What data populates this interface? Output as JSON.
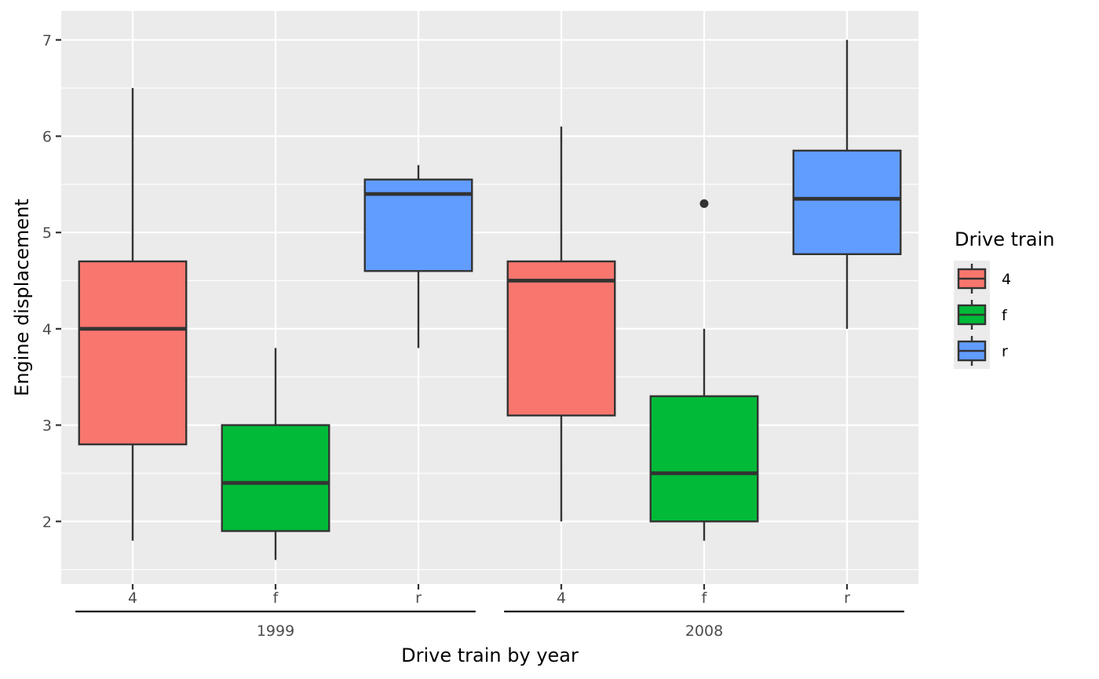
{
  "chart_data": {
    "type": "boxplot",
    "xlabel": "Drive train by year",
    "ylabel": "Engine displacement",
    "ylim": [
      1.35,
      7.3
    ],
    "y_ticks": [
      2,
      3,
      4,
      5,
      6,
      7
    ],
    "y_tick_labels": [
      "2",
      "3",
      "4",
      "5",
      "6",
      "7"
    ],
    "grid": true,
    "legend_position": "right",
    "legend": {
      "title": "Drive train",
      "entries": [
        {
          "label": "4",
          "color": "#F8766D"
        },
        {
          "label": "f",
          "color": "#00BA38"
        },
        {
          "label": "r",
          "color": "#619CFF"
        }
      ]
    },
    "groups": [
      {
        "label": "1999",
        "categories": [
          "4",
          "f",
          "r"
        ]
      },
      {
        "label": "2008",
        "categories": [
          "4",
          "f",
          "r"
        ]
      }
    ],
    "series": [
      {
        "year": "1999",
        "drv": "4",
        "color": "#F8766D",
        "whisker_low": 1.8,
        "q1": 2.8,
        "median": 4.0,
        "q3": 4.7,
        "whisker_high": 6.5,
        "outliers": []
      },
      {
        "year": "1999",
        "drv": "f",
        "color": "#00BA38",
        "whisker_low": 1.6,
        "q1": 1.9,
        "median": 2.4,
        "q3": 3.0,
        "whisker_high": 3.8,
        "outliers": []
      },
      {
        "year": "1999",
        "drv": "r",
        "color": "#619CFF",
        "whisker_low": 3.8,
        "q1": 4.6,
        "median": 5.4,
        "q3": 5.55,
        "whisker_high": 5.7,
        "outliers": []
      },
      {
        "year": "2008",
        "drv": "4",
        "color": "#F8766D",
        "whisker_low": 2.0,
        "q1": 3.1,
        "median": 4.5,
        "q3": 4.7,
        "whisker_high": 6.1,
        "outliers": []
      },
      {
        "year": "2008",
        "drv": "f",
        "color": "#00BA38",
        "whisker_low": 1.8,
        "q1": 2.0,
        "median": 2.5,
        "q3": 3.3,
        "whisker_high": 4.0,
        "outliers": [
          5.3
        ]
      },
      {
        "year": "2008",
        "drv": "r",
        "color": "#619CFF",
        "whisker_low": 4.0,
        "q1": 4.775,
        "median": 5.35,
        "q3": 5.85,
        "whisker_high": 7.0,
        "outliers": []
      }
    ]
  },
  "style": {
    "panel_background": "#EBEBEB",
    "grid_color": "#FFFFFF",
    "box_outline": "#333333",
    "tick_color": "#333333"
  }
}
